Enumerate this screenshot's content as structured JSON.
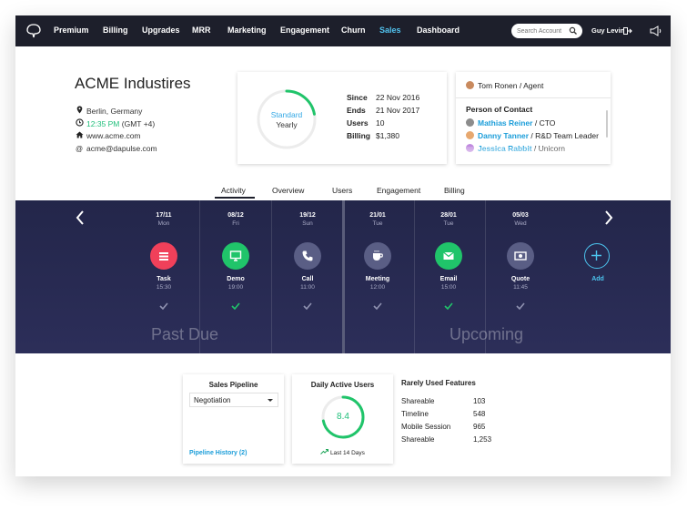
{
  "nav": {
    "items": [
      "Premium",
      "Billing",
      "Upgrades",
      "MRR",
      "Marketing",
      "Engagement",
      "Churn",
      "Sales",
      "Dashboard"
    ],
    "active": "Sales",
    "search_placeholder": "Search Account",
    "user": "Guy Levin"
  },
  "company": {
    "name": "ACME Industires",
    "location": "Berlin, Germany",
    "time": "12:35 PM",
    "timezone": "(GMT +4)",
    "website": "www.acme.com",
    "email": "acme@dapulse.com"
  },
  "plan": {
    "type": "Standard",
    "period": "Yearly",
    "since_label": "Since",
    "since": "22 Nov 2016",
    "ends_label": "Ends",
    "ends": "21 Nov 2017",
    "users_label": "Users",
    "users": "10",
    "billing_label": "Billing",
    "billing": "$1,380",
    "progress": 0.22
  },
  "contact": {
    "agent_name": "Tom Ronen",
    "agent_role": "/ Agent",
    "poc_title": "Person of Contact",
    "people": [
      {
        "name": "Mathias Reiner",
        "role": "/ CTO"
      },
      {
        "name": "Danny Tanner",
        "role": "/ R&D Team Leader"
      },
      {
        "name": "Jessica Rabbit",
        "role": "/ Unicorn"
      }
    ]
  },
  "tabs": [
    "Activity",
    "Overview",
    "Users",
    "Engagement",
    "Billing"
  ],
  "active_tab": "Activity",
  "timeline": {
    "events": [
      {
        "date": "17/11",
        "day": "Mon",
        "name": "Task",
        "time": "15:30",
        "color": "#f0405a",
        "icon": "list-icon",
        "done": false
      },
      {
        "date": "08/12",
        "day": "Fri",
        "name": "Demo",
        "time": "19:00",
        "color": "#20c46a",
        "icon": "monitor-icon",
        "done": true
      },
      {
        "date": "19/12",
        "day": "Sun",
        "name": "Call",
        "time": "11:00",
        "color": "#5a5e85",
        "icon": "phone-icon",
        "done": false
      },
      {
        "date": "21/01",
        "day": "Tue",
        "name": "Meeting",
        "time": "12:00",
        "color": "#5a5e85",
        "icon": "coffee-icon",
        "done": false
      },
      {
        "date": "28/01",
        "day": "Tue",
        "name": "Email",
        "time": "15:00",
        "color": "#20c46a",
        "icon": "envelope-icon",
        "done": true
      },
      {
        "date": "05/03",
        "day": "Wed",
        "name": "Quote",
        "time": "11:45",
        "color": "#5a5e85",
        "icon": "money-icon",
        "done": false
      }
    ],
    "add_label": "Add",
    "past_label": "Past Due",
    "upcoming_label": "Upcoming"
  },
  "pipeline": {
    "title": "Sales Pipeline",
    "selected": "Negotiation",
    "link": "Pipeline History (2)"
  },
  "dau": {
    "title": "Daily Active Users",
    "value": "8.4",
    "progress": 0.72,
    "footer": "Last 14 Days"
  },
  "rare": {
    "title": "Rarely Used Features",
    "rows": [
      {
        "name": "Shareable",
        "value": "103"
      },
      {
        "name": "Timeline",
        "value": "548"
      },
      {
        "name": "Mobile Session",
        "value": "965"
      },
      {
        "name": "Shareable",
        "value": "1,253"
      }
    ]
  }
}
